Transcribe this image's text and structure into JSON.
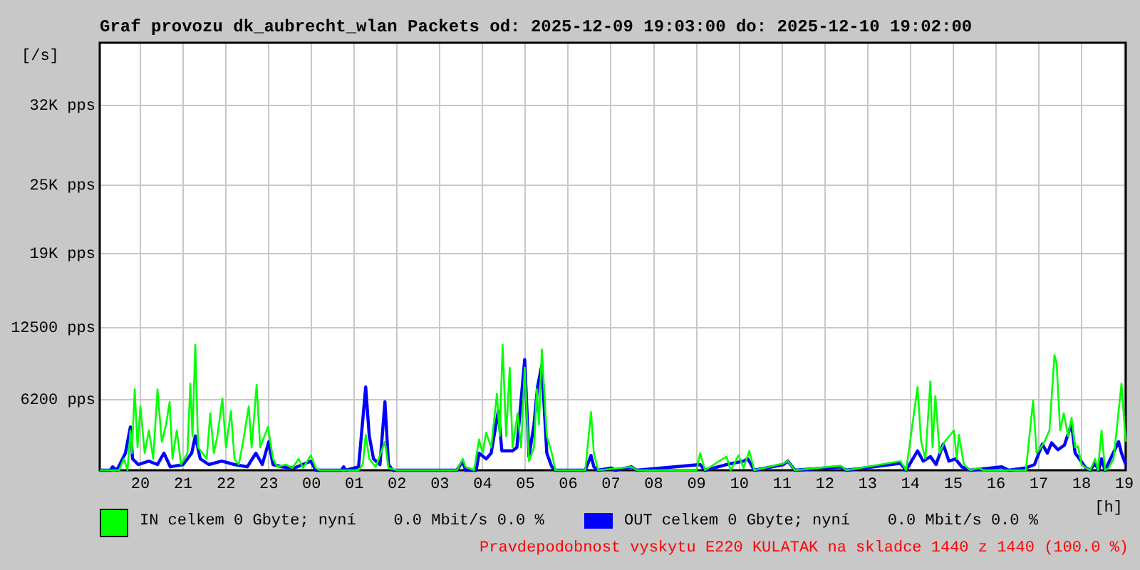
{
  "chart_data": {
    "type": "line",
    "title": "Graf provozu dk_aubrecht_wlan Packets od: 2025-12-09 19:03:00 do: 2025-12-10 19:02:00",
    "ylabel": "[/s]",
    "xlabel": "[h]",
    "xlim": [
      "2025-12-09T19:03",
      "2025-12-10T19:02"
    ],
    "xticks": [
      {
        "value": "2025-12-09T20:00",
        "label": "20"
      },
      {
        "value": "2025-12-09T21:00",
        "label": "21"
      },
      {
        "value": "2025-12-09T22:00",
        "label": "22"
      },
      {
        "value": "2025-12-09T23:00",
        "label": "23"
      },
      {
        "value": "2025-12-10T00:00",
        "label": "00"
      },
      {
        "value": "2025-12-10T01:00",
        "label": "01"
      },
      {
        "value": "2025-12-10T02:00",
        "label": "02"
      },
      {
        "value": "2025-12-10T03:00",
        "label": "03"
      },
      {
        "value": "2025-12-10T04:00",
        "label": "04"
      },
      {
        "value": "2025-12-10T05:00",
        "label": "05"
      },
      {
        "value": "2025-12-10T06:00",
        "label": "06"
      },
      {
        "value": "2025-12-10T07:00",
        "label": "07"
      },
      {
        "value": "2025-12-10T08:00",
        "label": "08"
      },
      {
        "value": "2025-12-10T09:00",
        "label": "09"
      },
      {
        "value": "2025-12-10T10:00",
        "label": "10"
      },
      {
        "value": "2025-12-10T11:00",
        "label": "11"
      },
      {
        "value": "2025-12-10T12:00",
        "label": "12"
      },
      {
        "value": "2025-12-10T13:00",
        "label": "13"
      },
      {
        "value": "2025-12-10T14:00",
        "label": "14"
      },
      {
        "value": "2025-12-10T15:00",
        "label": "15"
      },
      {
        "value": "2025-12-10T16:00",
        "label": "16"
      },
      {
        "value": "2025-12-10T17:00",
        "label": "17"
      },
      {
        "value": "2025-12-10T18:00",
        "label": "18"
      },
      {
        "value": "2025-12-10T19:00",
        "label": "19"
      }
    ],
    "ylim": [
      0,
      37500
    ],
    "yticks": [
      {
        "value": 6200,
        "label": "6200 pps"
      },
      {
        "value": 12500,
        "label": "12500 pps"
      },
      {
        "value": 19000,
        "label": "19K pps"
      },
      {
        "value": 25000,
        "label": "25K pps"
      },
      {
        "value": 32000,
        "label": "32K pps"
      }
    ],
    "grid": true,
    "legend": "bottom",
    "marker": "none",
    "annotations": [
      "Pravdepodobnost vyskytu E220 KULATAK na skladce 1440 z 1440 (100.0 %)"
    ],
    "series": [
      {
        "name": "IN celkem 0 Gbyte; nyní    0.0 Mbit/s 0.0 %",
        "color": "#00ff00",
        "x": [
          "2025-12-09T19:03",
          "2025-12-09T19:30",
          "2025-12-09T19:37",
          "2025-12-09T19:42",
          "2025-12-09T19:46",
          "2025-12-09T19:48",
          "2025-12-09T19:52",
          "2025-12-09T19:56",
          "2025-12-09T20:00",
          "2025-12-09T20:06",
          "2025-12-09T20:12",
          "2025-12-09T20:18",
          "2025-12-09T20:24",
          "2025-12-09T20:30",
          "2025-12-09T20:36",
          "2025-12-09T20:41",
          "2025-12-09T20:45",
          "2025-12-09T20:51",
          "2025-12-09T20:57",
          "2025-12-09T21:06",
          "2025-12-09T21:10",
          "2025-12-09T21:13",
          "2025-12-09T21:17",
          "2025-12-09T21:21",
          "2025-12-09T21:27",
          "2025-12-09T21:33",
          "2025-12-09T21:38",
          "2025-12-09T21:43",
          "2025-12-09T21:48",
          "2025-12-09T21:55",
          "2025-12-09T22:00",
          "2025-12-09T22:07",
          "2025-12-09T22:12",
          "2025-12-09T22:18",
          "2025-12-09T22:24",
          "2025-12-09T22:32",
          "2025-12-09T22:36",
          "2025-12-09T22:43",
          "2025-12-09T22:48",
          "2025-12-09T22:54",
          "2025-12-09T22:59",
          "2025-12-09T23:06",
          "2025-12-09T23:12",
          "2025-12-09T23:24",
          "2025-12-09T23:33",
          "2025-12-09T23:42",
          "2025-12-09T23:48",
          "2025-12-09T23:59",
          "2025-12-10T00:06",
          "2025-12-10T00:12",
          "2025-12-10T01:06",
          "2025-12-10T01:12",
          "2025-12-10T01:16",
          "2025-12-10T01:21",
          "2025-12-10T01:30",
          "2025-12-10T01:43",
          "2025-12-10T01:48",
          "2025-12-10T02:00",
          "2025-12-10T03:24",
          "2025-12-10T03:32",
          "2025-12-10T03:36",
          "2025-12-10T03:48",
          "2025-12-10T03:55",
          "2025-12-10T04:00",
          "2025-12-10T04:05",
          "2025-12-10T04:12",
          "2025-12-10T04:20",
          "2025-12-10T04:24",
          "2025-12-10T04:28",
          "2025-12-10T04:33",
          "2025-12-10T04:38",
          "2025-12-10T04:42",
          "2025-12-10T04:49",
          "2025-12-10T04:54",
          "2025-12-10T04:59",
          "2025-12-10T05:05",
          "2025-12-10T05:12",
          "2025-12-10T05:16",
          "2025-12-10T05:19",
          "2025-12-10T05:23",
          "2025-12-10T05:30",
          "2025-12-10T05:37",
          "2025-12-10T05:42",
          "2025-12-10T06:24",
          "2025-12-10T06:32",
          "2025-12-10T06:36",
          "2025-12-10T06:42",
          "2025-12-10T07:29",
          "2025-12-10T07:36",
          "2025-12-10T09:00",
          "2025-12-10T09:05",
          "2025-12-10T09:12",
          "2025-12-10T09:42",
          "2025-12-10T09:48",
          "2025-12-10T09:59",
          "2025-12-10T10:06",
          "2025-12-10T10:14",
          "2025-12-10T10:21",
          "2025-12-10T11:02",
          "2025-12-10T11:08",
          "2025-12-10T11:18",
          "2025-12-10T12:22",
          "2025-12-10T12:30",
          "2025-12-10T13:46",
          "2025-12-10T13:54",
          "2025-12-10T14:10",
          "2025-12-10T14:15",
          "2025-12-10T14:21",
          "2025-12-10T14:28",
          "2025-12-10T14:31",
          "2025-12-10T14:35",
          "2025-12-10T14:41",
          "2025-12-10T14:48",
          "2025-12-10T15:01",
          "2025-12-10T15:05",
          "2025-12-10T15:08",
          "2025-12-10T15:15",
          "2025-12-10T15:24",
          "2025-12-10T15:36",
          "2025-12-10T15:42",
          "2025-12-10T16:42",
          "2025-12-10T16:52",
          "2025-12-10T16:57",
          "2025-12-10T17:03",
          "2025-12-10T17:08",
          "2025-12-10T17:15",
          "2025-12-10T17:22",
          "2025-12-10T17:25",
          "2025-12-10T17:30",
          "2025-12-10T17:35",
          "2025-12-10T17:41",
          "2025-12-10T17:46",
          "2025-12-10T17:51",
          "2025-12-10T17:55",
          "2025-12-10T18:00",
          "2025-12-10T18:06",
          "2025-12-10T18:12",
          "2025-12-10T18:19",
          "2025-12-10T18:23",
          "2025-12-10T18:28",
          "2025-12-10T18:33",
          "2025-12-10T18:38",
          "2025-12-10T18:45",
          "2025-12-10T18:52",
          "2025-12-10T18:56",
          "2025-12-10T19:02"
        ],
        "values": [
          0,
          0,
          1000,
          0,
          3500,
          1500,
          7100,
          2000,
          5600,
          1500,
          3500,
          1000,
          7100,
          2500,
          4000,
          6000,
          1000,
          3500,
          500,
          1500,
          7600,
          3000,
          11000,
          2000,
          1500,
          1000,
          5000,
          1500,
          3000,
          6300,
          2000,
          5200,
          1000,
          500,
          2500,
          5600,
          2000,
          7500,
          2000,
          3000,
          3800,
          1000,
          300,
          500,
          200,
          1000,
          200,
          1300,
          200,
          0,
          0,
          500,
          3100,
          1000,
          300,
          2500,
          200,
          0,
          0,
          1000,
          300,
          0,
          2700,
          1500,
          3300,
          2000,
          6700,
          3000,
          11000,
          3000,
          9000,
          2000,
          5000,
          2000,
          9000,
          800,
          2000,
          7100,
          4000,
          10600,
          3000,
          1500,
          0,
          0,
          5100,
          1500,
          0,
          300,
          0,
          0,
          1500,
          0,
          1200,
          0,
          1300,
          200,
          1700,
          0,
          600,
          800,
          0,
          400,
          0,
          800,
          0,
          7300,
          2500,
          1000,
          7800,
          2000,
          6500,
          1500,
          2500,
          3500,
          1000,
          3100,
          500,
          0,
          200,
          0,
          0,
          6100,
          1500,
          2000,
          2500,
          3500,
          10100,
          9400,
          3500,
          5000,
          3000,
          4600,
          2000,
          2100,
          500,
          200,
          0,
          1000,
          0,
          3500,
          0,
          200,
          1000,
          5200,
          7600,
          2500
        ]
      },
      {
        "name": "OUT celkem 0 Gbyte; nyní    0.0 Mbit/s 0.0 %",
        "color": "#0000ff",
        "x": [
          "2025-12-09T19:03",
          "2025-12-09T19:18",
          "2025-12-09T19:21",
          "2025-12-09T19:27",
          "2025-12-09T19:39",
          "2025-12-09T19:46",
          "2025-12-09T19:49",
          "2025-12-09T19:57",
          "2025-12-09T20:12",
          "2025-12-09T20:24",
          "2025-12-09T20:33",
          "2025-12-09T20:42",
          "2025-12-09T21:00",
          "2025-12-09T21:12",
          "2025-12-09T21:17",
          "2025-12-09T21:24",
          "2025-12-09T21:36",
          "2025-12-09T21:54",
          "2025-12-09T22:12",
          "2025-12-09T22:30",
          "2025-12-09T22:42",
          "2025-12-09T22:51",
          "2025-12-09T23:00",
          "2025-12-09T23:06",
          "2025-12-09T23:18",
          "2025-12-09T23:36",
          "2025-12-09T23:59",
          "2025-12-10T00:06",
          "2025-12-10T00:42",
          "2025-12-10T00:45",
          "2025-12-10T00:48",
          "2025-12-10T01:06",
          "2025-12-10T01:16",
          "2025-12-10T01:21",
          "2025-12-10T01:27",
          "2025-12-10T01:36",
          "2025-12-10T01:43",
          "2025-12-10T01:48",
          "2025-12-10T01:54",
          "2025-12-10T03:24",
          "2025-12-10T03:32",
          "2025-12-10T03:36",
          "2025-12-10T03:51",
          "2025-12-10T03:55",
          "2025-12-10T04:05",
          "2025-12-10T04:12",
          "2025-12-10T04:22",
          "2025-12-10T04:27",
          "2025-12-10T04:33",
          "2025-12-10T04:42",
          "2025-12-10T04:48",
          "2025-12-10T04:59",
          "2025-12-10T05:05",
          "2025-12-10T05:12",
          "2025-12-10T05:17",
          "2025-12-10T05:23",
          "2025-12-10T05:30",
          "2025-12-10T05:37",
          "2025-12-10T05:42",
          "2025-12-10T06:24",
          "2025-12-10T06:32",
          "2025-12-10T06:36",
          "2025-12-10T06:42",
          "2025-12-10T07:00",
          "2025-12-10T07:06",
          "2025-12-10T07:29",
          "2025-12-10T07:36",
          "2025-12-10T09:05",
          "2025-12-10T09:12",
          "2025-12-10T09:42",
          "2025-12-10T10:06",
          "2025-12-10T10:12",
          "2025-12-10T10:21",
          "2025-12-10T11:02",
          "2025-12-10T11:08",
          "2025-12-10T11:18",
          "2025-12-10T12:22",
          "2025-12-10T12:30",
          "2025-12-10T13:46",
          "2025-12-10T13:54",
          "2025-12-10T14:10",
          "2025-12-10T14:18",
          "2025-12-10T14:28",
          "2025-12-10T14:36",
          "2025-12-10T14:46",
          "2025-12-10T14:54",
          "2025-12-10T15:03",
          "2025-12-10T15:12",
          "2025-12-10T15:24",
          "2025-12-10T16:08",
          "2025-12-10T16:18",
          "2025-12-10T16:42",
          "2025-12-10T16:54",
          "2025-12-10T17:05",
          "2025-12-10T17:12",
          "2025-12-10T17:18",
          "2025-12-10T17:27",
          "2025-12-10T17:36",
          "2025-12-10T17:46",
          "2025-12-10T17:51",
          "2025-12-10T17:57",
          "2025-12-10T18:06",
          "2025-12-10T18:12",
          "2025-12-10T18:19",
          "2025-12-10T18:24",
          "2025-12-10T18:28",
          "2025-12-10T18:33",
          "2025-12-10T18:52",
          "2025-12-10T18:56",
          "2025-12-10T19:02"
        ],
        "values": [
          0,
          0,
          300,
          0,
          1500,
          3800,
          1000,
          500,
          800,
          500,
          1500,
          300,
          500,
          1500,
          3000,
          1000,
          500,
          800,
          500,
          300,
          1500,
          500,
          2500,
          500,
          300,
          200,
          800,
          0,
          0,
          300,
          0,
          300,
          7300,
          3000,
          1000,
          500,
          6000,
          500,
          0,
          0,
          800,
          0,
          0,
          1500,
          1000,
          1500,
          5200,
          1700,
          1700,
          1700,
          2000,
          9700,
          1200,
          4000,
          7300,
          9200,
          1500,
          300,
          0,
          0,
          1300,
          300,
          0,
          200,
          0,
          300,
          0,
          500,
          0,
          500,
          800,
          1000,
          0,
          500,
          800,
          0,
          300,
          0,
          600,
          0,
          1700,
          800,
          1200,
          500,
          2300,
          800,
          1000,
          300,
          0,
          300,
          0,
          200,
          500,
          2300,
          1500,
          2400,
          1800,
          2200,
          4100,
          1500,
          1000,
          200,
          0,
          600,
          0,
          1000,
          0,
          2500,
          1500,
          500
        ]
      }
    ]
  }
}
